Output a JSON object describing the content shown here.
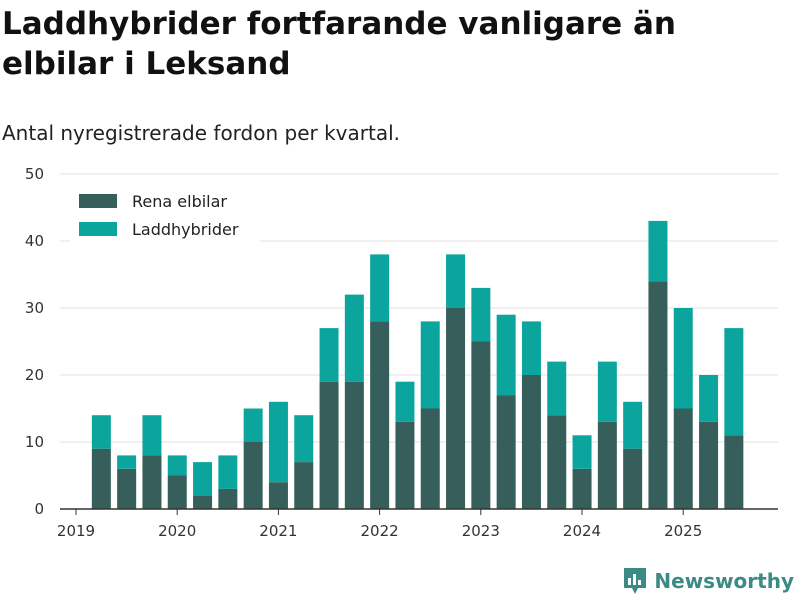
{
  "header": {
    "title": "Laddhybrider fortfarande vanligare än elbilar i Leksand",
    "subtitle": "Antal nyregistrerade fordon per kvartal."
  },
  "brand": {
    "name": "Newsworthy",
    "icon": "newsworthy-logo-icon"
  },
  "colors": {
    "rena": "#365e5a",
    "ladd": "#0ca59e",
    "grid": "#e2e2e2",
    "axis": "#333333"
  },
  "chart_data": {
    "type": "bar",
    "stacked": true,
    "ylim": [
      0,
      50
    ],
    "yticks": [
      0,
      10,
      20,
      30,
      40,
      50
    ],
    "year_ticks": [
      "2019",
      "2020",
      "2021",
      "2022",
      "2023",
      "2024",
      "2025"
    ],
    "categories": [
      "2019 Q2",
      "2019 Q3",
      "2019 Q4",
      "2020 Q1",
      "2020 Q2",
      "2020 Q3",
      "2020 Q4",
      "2021 Q1",
      "2021 Q2",
      "2021 Q3",
      "2021 Q4",
      "2022 Q1",
      "2022 Q2",
      "2022 Q3",
      "2022 Q4",
      "2023 Q1",
      "2023 Q2",
      "2023 Q3",
      "2023 Q4",
      "2024 Q1",
      "2024 Q2",
      "2024 Q3",
      "2024 Q4",
      "2025 Q1",
      "2025 Q2",
      "2025 Q3"
    ],
    "series": [
      {
        "name": "Rena elbilar",
        "values": [
          9,
          6,
          8,
          5,
          2,
          3,
          10,
          4,
          7,
          19,
          19,
          28,
          13,
          15,
          30,
          25,
          17,
          20,
          14,
          6,
          13,
          9,
          34,
          15,
          13,
          11
        ]
      },
      {
        "name": "Laddhybrider",
        "values": [
          5,
          2,
          6,
          3,
          5,
          5,
          5,
          12,
          7,
          8,
          13,
          10,
          6,
          13,
          8,
          8,
          12,
          8,
          8,
          5,
          9,
          7,
          9,
          15,
          7,
          16
        ]
      }
    ],
    "legend_position": "top-left"
  }
}
